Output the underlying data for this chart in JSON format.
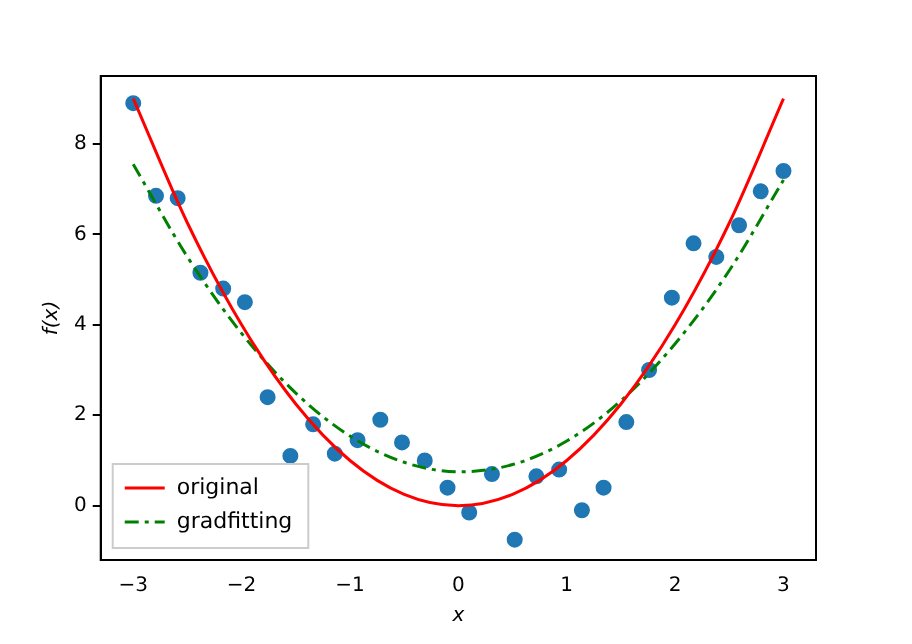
{
  "chart_data": {
    "type": "scatter",
    "xlabel": "x",
    "ylabel": "f(x)",
    "xlim": [
      -3.3,
      3.3
    ],
    "ylim": [
      -1.2,
      9.5
    ],
    "xticks": [
      -3,
      -2,
      -1,
      0,
      1,
      2,
      3
    ],
    "yticks": [
      0,
      2,
      4,
      6,
      8
    ],
    "grid": false,
    "legend": "bottom left",
    "series": [
      {
        "type": "scatter",
        "color": "#1f77b4",
        "marker": "circle",
        "x": [
          -3,
          -2.79,
          -2.59,
          -2.38,
          -2.17,
          -1.97,
          -1.76,
          -1.55,
          -1.34,
          -1.14,
          -0.93,
          -0.72,
          -0.52,
          -0.31,
          -0.1,
          0.1,
          0.31,
          0.52,
          0.72,
          0.93,
          1.14,
          1.34,
          1.55,
          1.76,
          1.97,
          2.17,
          2.38,
          2.59,
          2.79,
          3
        ],
        "values": [
          8.9,
          6.85,
          6.8,
          5.15,
          4.8,
          4.5,
          2.4,
          1.1,
          1.8,
          1.15,
          1.45,
          1.9,
          1.4,
          1.0,
          0.4,
          -0.15,
          0.7,
          -0.75,
          0.65,
          0.8,
          -0.1,
          0.4,
          1.85,
          3.0,
          4.6,
          5.8,
          5.5,
          6.2,
          6.95,
          7.4
        ]
      },
      {
        "type": "line",
        "name": "original",
        "color": "#ff0000",
        "marker": "none",
        "line_style": "solid",
        "x": [
          -3,
          -2.5,
          -2,
          -1.5,
          -1,
          -0.5,
          0,
          0.5,
          1,
          1.5,
          2,
          2.5,
          3
        ],
        "values": [
          9,
          6.25,
          4,
          2.25,
          1,
          0.25,
          0,
          0.25,
          1,
          2.25,
          4,
          6.25,
          9
        ]
      },
      {
        "type": "line",
        "name": "gradfitting",
        "color": "#008000",
        "marker": "none",
        "line_style": "dashed",
        "x": [
          -3,
          -2.5,
          -2,
          -1.5,
          -1,
          -0.5,
          0,
          0.5,
          1,
          1.5,
          2,
          2.5,
          3
        ],
        "values": [
          7.55,
          5.5,
          3.81,
          2.49,
          1.54,
          0.96,
          0.75,
          0.91,
          1.43,
          2.32,
          3.58,
          5.2,
          7.2
        ]
      }
    ]
  }
}
